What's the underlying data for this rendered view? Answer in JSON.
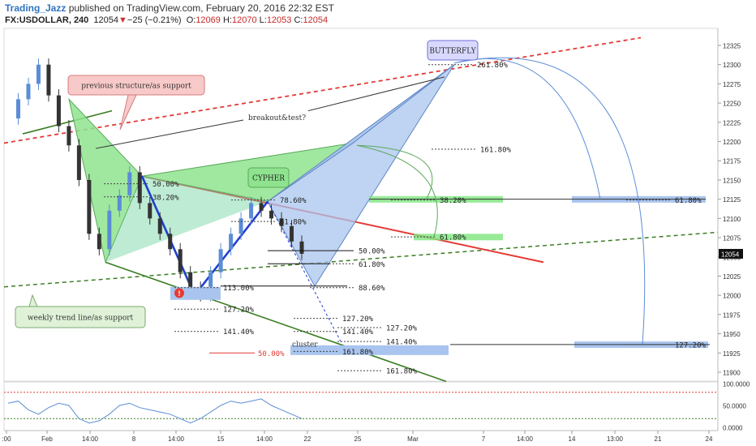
{
  "header": {
    "author": "Trading_Jazz",
    "published_text": " published on TradingView.com, February 20, 2016 22:32 EST",
    "symbol": "FX:USDOLLAR, 240",
    "last": "12054",
    "change": "−25 (−0.21%)",
    "o_label": "O:",
    "o": "12069",
    "h_label": "H:",
    "h": "12070",
    "l_label": "L:",
    "l": "12053",
    "c_label": "C:",
    "c": "12054"
  },
  "chart_data": {
    "type": "candlestick",
    "symbol": "FX:USDOLLAR",
    "interval": "240",
    "price_axis": {
      "range": [
        11875,
        12340
      ],
      "ticks": [
        12325,
        12300,
        12275,
        12250,
        12225,
        12200,
        12175,
        12150,
        12125,
        12100,
        12075,
        12050,
        12025,
        12000,
        11975,
        11950,
        11925,
        11900
      ],
      "last_price": 12054,
      "last_price_label": "12054"
    },
    "time_axis_labels": [
      ":00",
      "Feb",
      "14:00",
      "8",
      "14:00",
      "15",
      "14:00",
      "22",
      "25",
      "Mar",
      "7",
      "14:00",
      "14",
      "13:00",
      "21",
      "24"
    ],
    "candles_close_path": [
      12230,
      12255,
      12275,
      12300,
      12260,
      12220,
      12195,
      12150,
      12080,
      12060,
      12110,
      12130,
      12160,
      12120,
      12100,
      12080,
      12060,
      12030,
      12010,
      12000,
      12030,
      12060,
      12080,
      12100,
      12120,
      12110,
      12100,
      12090,
      12070,
      12054
    ],
    "labels": {
      "butterfly": "BUTTERFLY",
      "cypher": "CYPHER",
      "prev_support": "previous structure/as support",
      "weekly": "weekly trend line/as support",
      "breakout": "breakout&test?",
      "cluster": "cluster",
      "alert": "!"
    },
    "fib_levels": [
      {
        "text": "261.80%",
        "price": 12300
      },
      {
        "text": "161.80%",
        "price": 12190
      },
      {
        "text": "50.00%",
        "price": 12145
      },
      {
        "text": "38.20%",
        "price": 12128
      },
      {
        "text": "78.60%",
        "price": 12122
      },
      {
        "text": "61.80%",
        "price": 12100
      },
      {
        "text": "38.20%",
        "price": 12124
      },
      {
        "text": "61.80%",
        "price": 12124
      },
      {
        "text": "61.80%",
        "price": 12076
      },
      {
        "text": "50.00%",
        "price": 12058
      },
      {
        "text": "61.80%",
        "price": 12041
      },
      {
        "text": "113.00%",
        "price": 12010
      },
      {
        "text": "88.60%",
        "price": 12012
      },
      {
        "text": "127.20%",
        "price": 11982
      },
      {
        "text": "127.20%",
        "price": 11970
      },
      {
        "text": "127.20%",
        "price": 11958
      },
      {
        "text": "141.40%",
        "price": 11953
      },
      {
        "text": "141.40%",
        "price": 11953
      },
      {
        "text": "141.40%",
        "price": 11940
      },
      {
        "text": "50.00%",
        "price": 11925
      },
      {
        "text": "161.80%",
        "price": 11927
      },
      {
        "text": "127.20%",
        "price": 11936
      },
      {
        "text": "161.80%",
        "price": 11902
      }
    ],
    "oscillator": {
      "ticks": [
        "100.0000",
        "50.0000",
        "0.0000"
      ],
      "upper_level": 80,
      "lower_level": 20,
      "values": [
        55,
        60,
        40,
        30,
        45,
        55,
        50,
        20,
        10,
        15,
        30,
        50,
        55,
        45,
        40,
        35,
        30,
        20,
        10,
        20,
        35,
        50,
        60,
        55,
        60,
        65,
        50,
        40,
        30,
        20
      ]
    },
    "colors": {
      "bullish_candle": "#5b8dd6",
      "bearish_candle": "#333333",
      "abcd_blue": "#1f3fd1",
      "resistance_red": "#e53935",
      "trend_green": "#3a7d22",
      "cypher_fill": "#8fe38f",
      "butterfly_fill": "#a9c4ee"
    }
  }
}
